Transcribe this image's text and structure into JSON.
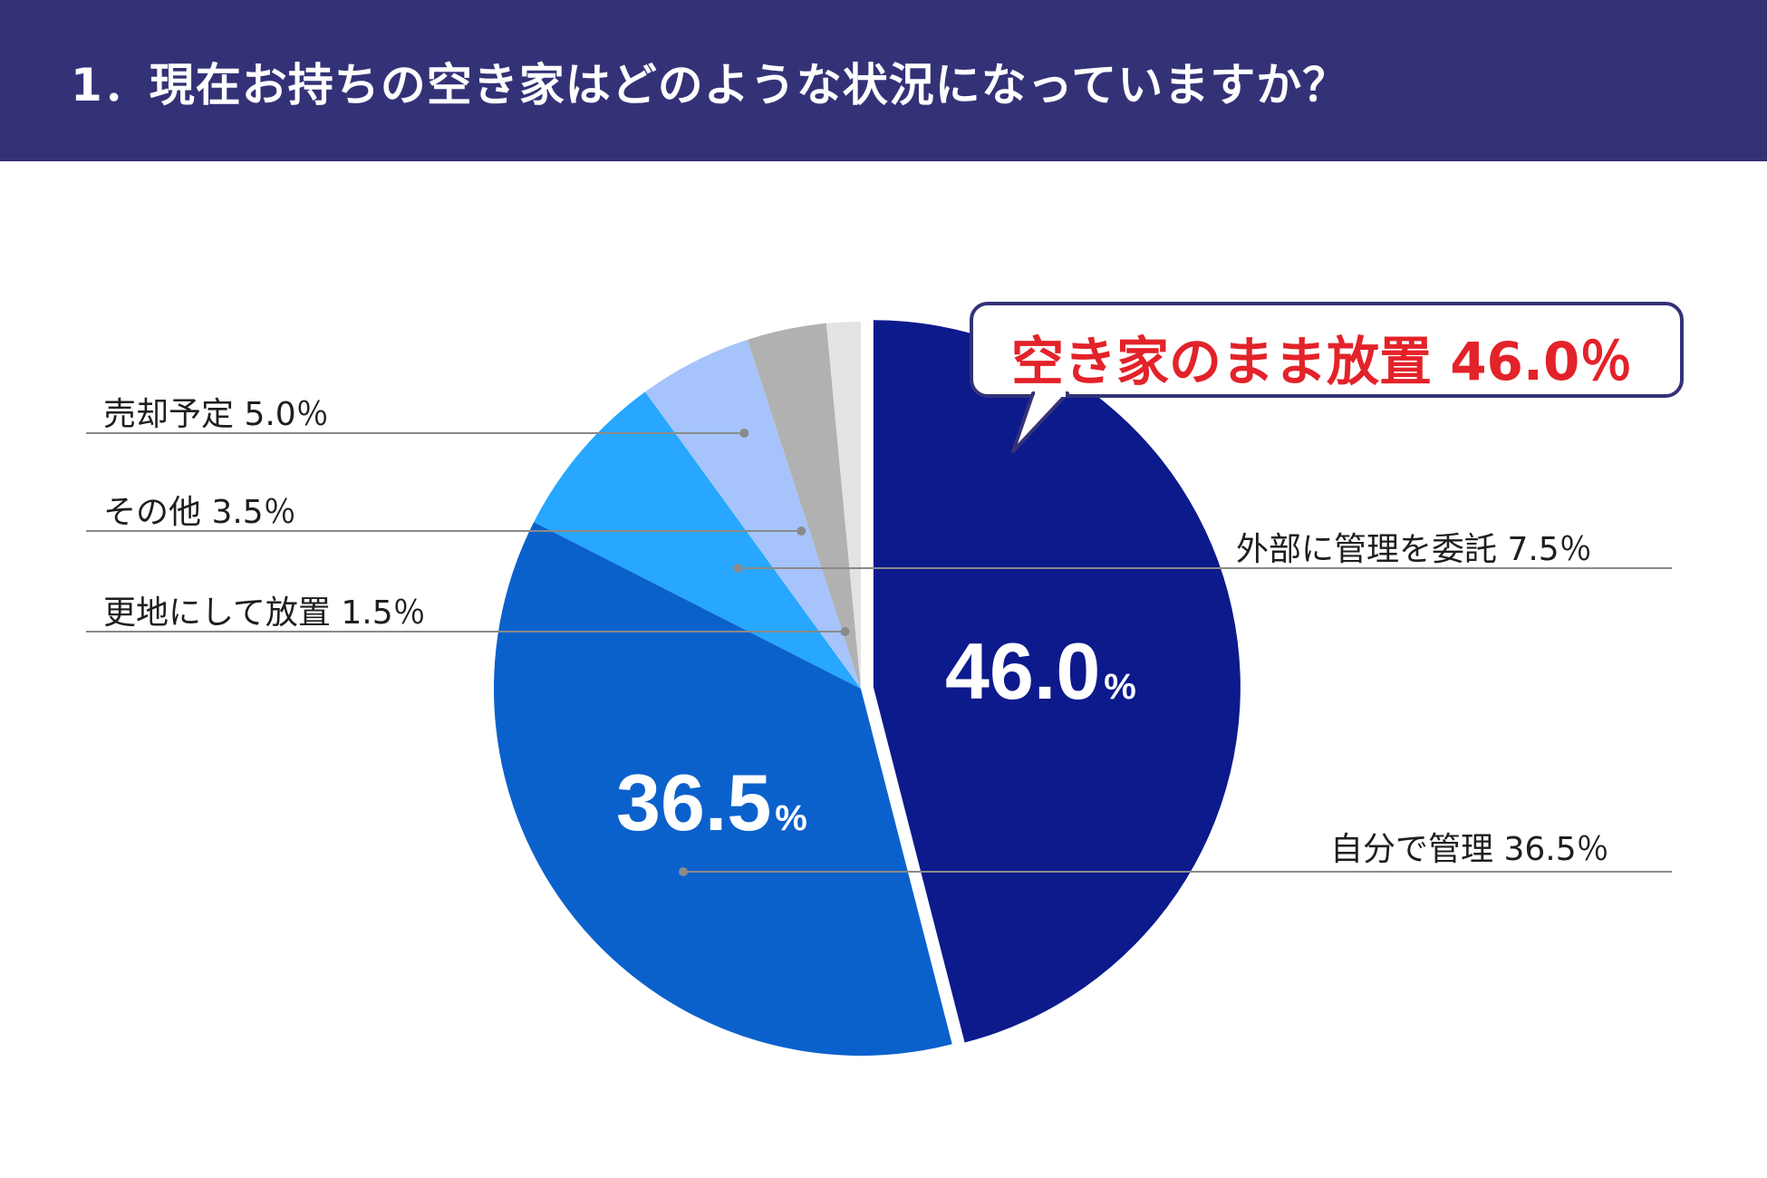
{
  "header": {
    "title": "1．現在お持ちの空き家はどのような状況になっていますか？"
  },
  "callout": {
    "text": "空き家のまま放置 46.0％"
  },
  "colors": {
    "header_bg": "#343277",
    "callout_text": "#e32229",
    "callout_border": "#343277"
  },
  "chart_data": {
    "type": "pie",
    "title": "",
    "start": "12 o'clock",
    "direction": "clockwise",
    "exploded": "空き家のまま放置",
    "slices": [
      {
        "name": "空き家のまま放置",
        "value": 46.0,
        "color": "#0c1a8c",
        "label": "",
        "inner_label": "46.0"
      },
      {
        "name": "自分で管理",
        "value": 36.5,
        "color": "#0b61cc",
        "label": "自分で管理 36.5％",
        "inner_label": "36.5"
      },
      {
        "name": "外部に管理を委託",
        "value": 7.5,
        "color": "#27a7ff",
        "label": "外部に管理を委託 7.5％",
        "inner_label": ""
      },
      {
        "name": "売却予定",
        "value": 5.0,
        "color": "#a6c4fb",
        "label": "売却予定 5.0％",
        "inner_label": ""
      },
      {
        "name": "その他",
        "value": 3.5,
        "color": "#b1b1b1",
        "label": "その他 3.5％",
        "inner_label": ""
      },
      {
        "name": "更地にして放置",
        "value": 1.5,
        "color": "#e3e3e3",
        "label": "更地にして放置 1.5％",
        "inner_label": ""
      }
    ],
    "percent_sign": "%"
  }
}
